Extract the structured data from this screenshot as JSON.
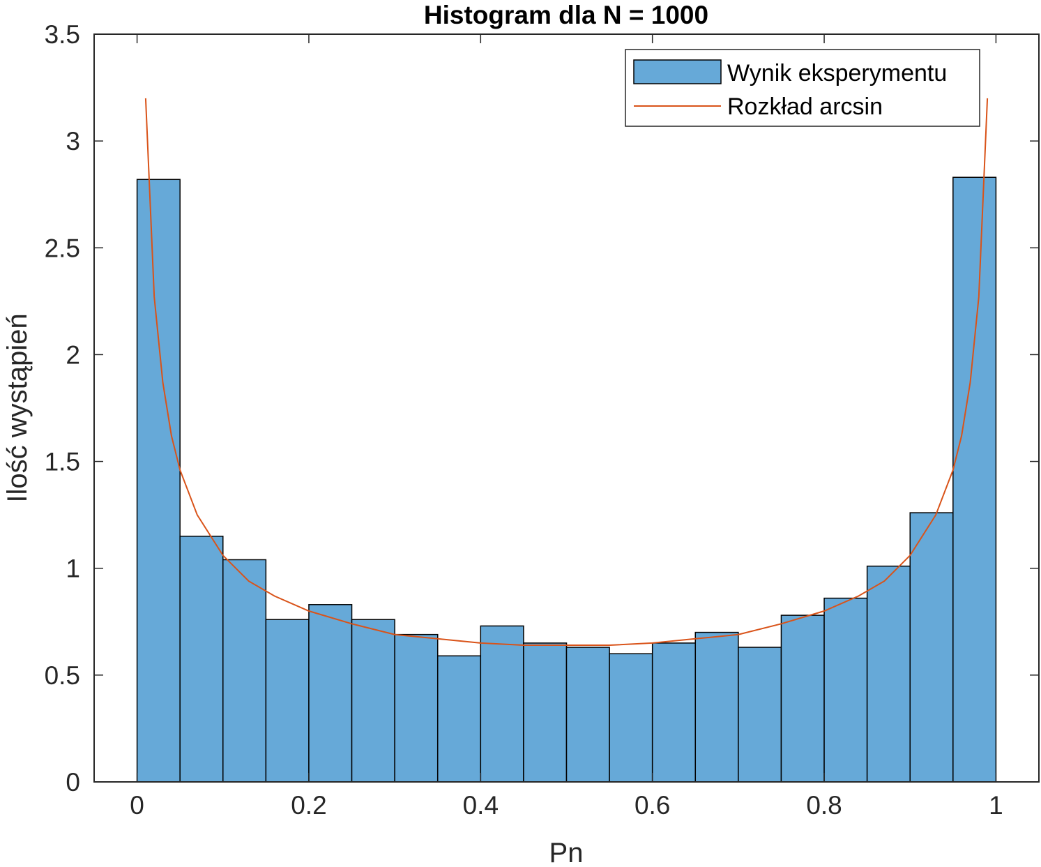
{
  "chart_data": {
    "type": "bar",
    "title": "Histogram dla N = 1000",
    "xlabel": "Pn",
    "ylabel": "Ilość wystąpień",
    "xlim": [
      -0.05,
      1.05
    ],
    "ylim": [
      0,
      3.5
    ],
    "xticks": [
      0,
      0.2,
      0.4,
      0.6,
      0.8,
      1
    ],
    "xtick_labels": [
      "0",
      "0.2",
      "0.4",
      "0.6",
      "0.8",
      "1"
    ],
    "yticks": [
      0,
      0.5,
      1,
      1.5,
      2,
      2.5,
      3,
      3.5
    ],
    "ytick_labels": [
      "0",
      "0.5",
      "1",
      "1.5",
      "2",
      "2.5",
      "3",
      "3.5"
    ],
    "grid": false,
    "legend_position": "top-right",
    "colors": {
      "bar_fill": "#66a9d8",
      "bar_edge": "#000000",
      "line": "#d95319"
    },
    "series": [
      {
        "name": "Wynik eksperymentu",
        "kind": "histogram",
        "bin_edges": [
          0,
          0.05,
          0.1,
          0.15,
          0.2,
          0.25,
          0.3,
          0.35,
          0.4,
          0.45,
          0.5,
          0.55,
          0.6,
          0.65,
          0.7,
          0.75,
          0.8,
          0.85,
          0.9,
          0.95,
          1.0
        ],
        "values": [
          2.82,
          1.15,
          1.04,
          0.76,
          0.83,
          0.76,
          0.69,
          0.59,
          0.73,
          0.65,
          0.63,
          0.6,
          0.65,
          0.7,
          0.63,
          0.78,
          0.86,
          1.01,
          1.26,
          2.83
        ]
      },
      {
        "name": "Rozkład arcsin",
        "kind": "line",
        "x": [
          0.01,
          0.02,
          0.03,
          0.04,
          0.05,
          0.07,
          0.1,
          0.13,
          0.16,
          0.2,
          0.25,
          0.3,
          0.35,
          0.4,
          0.45,
          0.5,
          0.55,
          0.6,
          0.65,
          0.7,
          0.75,
          0.8,
          0.84,
          0.87,
          0.9,
          0.93,
          0.95,
          0.96,
          0.97,
          0.98,
          0.99
        ],
        "y": [
          3.2,
          2.27,
          1.87,
          1.62,
          1.46,
          1.25,
          1.06,
          0.94,
          0.87,
          0.8,
          0.74,
          0.69,
          0.67,
          0.65,
          0.64,
          0.64,
          0.64,
          0.65,
          0.67,
          0.69,
          0.74,
          0.8,
          0.87,
          0.94,
          1.06,
          1.25,
          1.46,
          1.62,
          1.87,
          2.27,
          3.2
        ]
      }
    ]
  }
}
